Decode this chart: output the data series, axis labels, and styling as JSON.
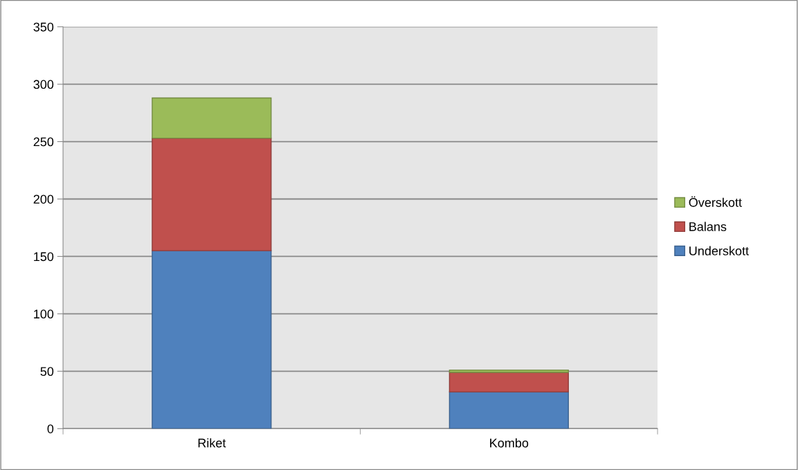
{
  "chart_data": {
    "type": "bar",
    "stacked": true,
    "categories": [
      "Riket",
      "Kombo"
    ],
    "series": [
      {
        "name": "Underskott",
        "color": "#4f81bd",
        "values": [
          155,
          32
        ]
      },
      {
        "name": "Balans",
        "color": "#c0504d",
        "values": [
          98,
          17
        ]
      },
      {
        "name": "Överskott",
        "color": "#9bbb59",
        "values": [
          35,
          2
        ]
      }
    ],
    "ylim": [
      0,
      350
    ],
    "yticks": [
      0,
      50,
      100,
      150,
      200,
      250,
      300,
      350
    ],
    "grid": "y",
    "legend": "right"
  }
}
